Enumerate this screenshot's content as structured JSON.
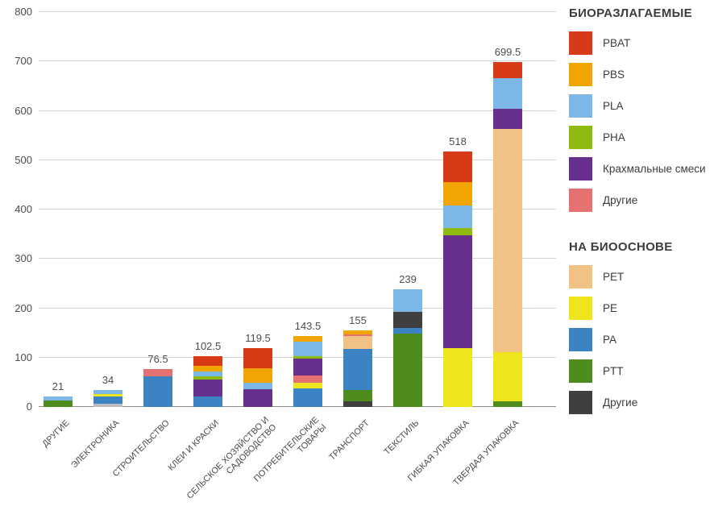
{
  "chart_data": {
    "type": "bar",
    "stacked": true,
    "title": "",
    "xlabel": "",
    "ylabel": "",
    "ylim": [
      0,
      800
    ],
    "yticks": [
      0,
      100,
      200,
      300,
      400,
      500,
      600,
      700,
      800
    ],
    "grid": "horizontal",
    "legend_position": "right",
    "palette": {
      "PBAT": "#d63a17",
      "PBS": "#f0a502",
      "PLA": "#7db7e6",
      "PHA": "#8fbb10",
      "starch": "#67308e",
      "other_biodeg": "#e57170",
      "PET": "#f1c286",
      "PE": "#efe51e",
      "PA": "#3b83c2",
      "PTT": "#4f8c1e",
      "other_bio": "#3f3f3f",
      "other_bio_light": "#bdbdbd"
    },
    "categories": [
      "ДРУГИЕ",
      "ЭЛЕКТРОНИКА",
      "СТРОИТЕЛЬСТВО",
      "КЛЕИ И КРАСКИ",
      "СЕЛЬСКОЕ ХОЗЯЙСТВО И САДОВОДСТВО",
      "ПОТРЕБИТЕЛЬСКИЕ ТОВАРЫ",
      "ТРАНСПОРТ",
      "ТЕКСТИЛЬ",
      "ГИБКАЯ УПАКОВКА",
      "ТВЕРДАЯ УПАКОВКА"
    ],
    "bars": [
      {
        "category": "ДРУГИЕ",
        "total": "21",
        "segments": [
          {
            "name": "PTT",
            "key": "PTT",
            "value": 13
          },
          {
            "name": "PLA",
            "key": "PLA",
            "value": 8
          }
        ]
      },
      {
        "category": "ЭЛЕКТРОНИКА",
        "total": "34",
        "segments": [
          {
            "name": "Другие",
            "key": "other_bio_light",
            "value": 6
          },
          {
            "name": "PA",
            "key": "PA",
            "value": 15
          },
          {
            "name": "PE",
            "key": "PE",
            "value": 5
          },
          {
            "name": "PLA",
            "key": "PLA",
            "value": 8
          }
        ]
      },
      {
        "category": "СТРОИТЕЛЬСТВО",
        "total": "76.5",
        "segments": [
          {
            "name": "PA",
            "key": "PA",
            "value": 62
          },
          {
            "name": "Другие",
            "key": "other_biodeg",
            "value": 14.5
          }
        ]
      },
      {
        "category": "КЛЕИ И КРАСКИ",
        "total": "102.5",
        "segments": [
          {
            "name": "PA",
            "key": "PA",
            "value": 22
          },
          {
            "name": "Крахмальные смеси",
            "key": "starch",
            "value": 34
          },
          {
            "name": "PHA",
            "key": "PHA",
            "value": 6
          },
          {
            "name": "PLA",
            "key": "PLA",
            "value": 10
          },
          {
            "name": "PBS",
            "key": "PBS",
            "value": 10.5
          },
          {
            "name": "PBAT",
            "key": "PBAT",
            "value": 20
          }
        ]
      },
      {
        "category": "СЕЛЬСКОЕ ХОЗЯЙСТВО И\nСАДОВОДСТВО",
        "total": "119.5",
        "segments": [
          {
            "name": "Крахмальные смеси",
            "key": "starch",
            "value": 36
          },
          {
            "name": "PLA",
            "key": "PLA",
            "value": 13
          },
          {
            "name": "PBS",
            "key": "PBS",
            "value": 29.5
          },
          {
            "name": "PBAT",
            "key": "PBAT",
            "value": 41
          }
        ]
      },
      {
        "category": "ПОТРЕБИТЕЛЬСКИЕ\nТОВАРЫ",
        "total": "143.5",
        "segments": [
          {
            "name": "PA",
            "key": "PA",
            "value": 38
          },
          {
            "name": "PE",
            "key": "PE",
            "value": 10.5
          },
          {
            "name": "Другие",
            "key": "other_biodeg",
            "value": 15
          },
          {
            "name": "Крахмальные смеси",
            "key": "starch",
            "value": 35
          },
          {
            "name": "PHA",
            "key": "PHA",
            "value": 5
          },
          {
            "name": "PLA",
            "key": "PLA",
            "value": 28
          },
          {
            "name": "PBS",
            "key": "PBS",
            "value": 12
          }
        ]
      },
      {
        "category": "ТРАНСПОРТ",
        "total": "155",
        "segments": [
          {
            "name": "Другие",
            "key": "other_bio",
            "value": 11
          },
          {
            "name": "PTT",
            "key": "PTT",
            "value": 24
          },
          {
            "name": "PA",
            "key": "PA",
            "value": 82
          },
          {
            "name": "PET",
            "key": "PET",
            "value": 26
          },
          {
            "name": "Другие",
            "key": "other_biodeg",
            "value": 4
          },
          {
            "name": "PBS",
            "key": "PBS",
            "value": 8
          }
        ]
      },
      {
        "category": "ТЕКСТИЛЬ",
        "total": "239",
        "segments": [
          {
            "name": "PTT",
            "key": "PTT",
            "value": 149
          },
          {
            "name": "PA",
            "key": "PA",
            "value": 11
          },
          {
            "name": "Другие",
            "key": "other_bio",
            "value": 32
          },
          {
            "name": "PLA",
            "key": "PLA",
            "value": 47
          }
        ]
      },
      {
        "category": "ГИБКАЯ УПАКОВКА",
        "total": "518",
        "segments": [
          {
            "name": "PE",
            "key": "PE",
            "value": 120
          },
          {
            "name": "Крахмальные смеси",
            "key": "starch",
            "value": 227
          },
          {
            "name": "PHA",
            "key": "PHA",
            "value": 16
          },
          {
            "name": "PLA",
            "key": "PLA",
            "value": 46
          },
          {
            "name": "PBS",
            "key": "PBS",
            "value": 47
          },
          {
            "name": "PBAT",
            "key": "PBAT",
            "value": 62
          }
        ]
      },
      {
        "category": "ТВЕРДАЯ УПАКОВКА",
        "total": "699.5",
        "segments": [
          {
            "name": "PTT",
            "key": "PTT",
            "value": 11
          },
          {
            "name": "PE",
            "key": "PE",
            "value": 100
          },
          {
            "name": "PET",
            "key": "PET",
            "value": 452
          },
          {
            "name": "Крахмальные смеси",
            "key": "starch",
            "value": 41
          },
          {
            "name": "PLA",
            "key": "PLA",
            "value": 62
          },
          {
            "name": "PBAT",
            "key": "PBAT",
            "value": 33.5
          }
        ]
      }
    ]
  },
  "legend": {
    "groups": [
      {
        "title": "БИОРАЗЛАГАЕМЫЕ",
        "items": [
          {
            "label": "PBAT",
            "key": "PBAT"
          },
          {
            "label": "PBS",
            "key": "PBS"
          },
          {
            "label": "PLA",
            "key": "PLA"
          },
          {
            "label": "PHA",
            "key": "PHA"
          },
          {
            "label": "Крахмальные смеси",
            "key": "starch"
          },
          {
            "label": "Другие",
            "key": "other_biodeg"
          }
        ]
      },
      {
        "title": "НА БИООСНОВЕ",
        "items": [
          {
            "label": "PET",
            "key": "PET"
          },
          {
            "label": "PE",
            "key": "PE"
          },
          {
            "label": "PA",
            "key": "PA"
          },
          {
            "label": "PTT",
            "key": "PTT"
          },
          {
            "label": "Другие",
            "key": "other_bio"
          }
        ]
      }
    ]
  }
}
